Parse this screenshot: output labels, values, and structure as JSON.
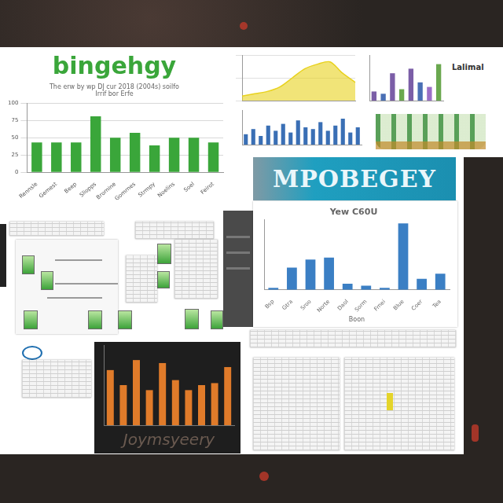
{
  "banner": "MPOBEGEY",
  "side_label": "Lalimal",
  "chart_data": [
    {
      "type": "bar",
      "title": "bingehgy",
      "subtitle": [
        "The erw by wp DJ cur 2018 (2004s) soilfo",
        "Irrif bor Erfe"
      ],
      "categories": [
        "Rennsle",
        "Gemest",
        "Beep",
        "Sliopps",
        "Brornine",
        "Gomrnes",
        "Strmpy",
        "Noelins",
        "Soel",
        "Feirot"
      ],
      "values": [
        43,
        43,
        43,
        81,
        50,
        57,
        39,
        50,
        50,
        43
      ],
      "color": "#3aa63a",
      "ylim": [
        0,
        100
      ],
      "yticks": [
        0,
        25,
        50,
        75,
        100
      ],
      "grid": true
    },
    {
      "type": "line",
      "categories": [
        null,
        null,
        null,
        null,
        null,
        null,
        null,
        null,
        null,
        null
      ],
      "values": [
        10,
        15,
        20,
        30,
        50,
        70,
        80,
        85,
        60,
        40
      ],
      "color": "#e8d21e",
      "ylim": [
        0,
        100
      ],
      "yticks": [
        0,
        50,
        100
      ],
      "grid": true,
      "tick_labels": false
    },
    {
      "type": "bar",
      "categories": [
        null,
        null,
        null,
        null,
        null,
        null,
        null,
        null
      ],
      "values": [
        20,
        15,
        60,
        25,
        70,
        40,
        30,
        80
      ],
      "colors": [
        "#7b5ea7",
        "#4a6fb5",
        "#7b5ea7",
        "#6aa84f",
        "#7b5ea7",
        "#4a6fb5",
        "#9b6fc7",
        "#6aa84f"
      ],
      "ylim": [
        0,
        100
      ],
      "yticks": [
        0,
        50,
        100
      ],
      "grid": false,
      "tick_labels": false
    },
    {
      "type": "bar",
      "categories": [
        null,
        null,
        null,
        null,
        null,
        null,
        null,
        null,
        null,
        null,
        null,
        null,
        null,
        null,
        null,
        null
      ],
      "values": [
        30,
        45,
        25,
        55,
        40,
        60,
        35,
        70,
        50,
        45,
        65,
        40,
        55,
        75,
        35,
        50
      ],
      "color": "#3a6fb5",
      "ylim": [
        0,
        100
      ],
      "yticks": [
        0,
        50,
        100
      ],
      "grid": false,
      "tick_labels": false
    },
    {
      "type": "bar",
      "title": "Yew C60U",
      "x_label": "Boon",
      "categories": [
        "Bsp",
        "Gtra",
        "Sroo",
        "Norte",
        "Daol",
        "Sorm",
        "Frnei",
        "Blue",
        "Coer",
        "Tea"
      ],
      "values": [
        2,
        22,
        30,
        32,
        6,
        4,
        2,
        66,
        11,
        16
      ],
      "color": "#3b7fc4",
      "ylim": [
        0,
        70
      ],
      "yticks": [
        0,
        35,
        70
      ],
      "grid": false,
      "tick_labels": "x"
    },
    {
      "type": "bar",
      "x_label": "Joymsyeery",
      "categories": [
        null,
        null,
        null,
        null,
        null,
        null,
        null,
        null,
        null,
        null
      ],
      "values": [
        55,
        40,
        65,
        35,
        62,
        45,
        35,
        40,
        42,
        58
      ],
      "color": "#e07b2a",
      "ylim": [
        0,
        80
      ],
      "yticks": [
        0,
        20,
        40,
        60,
        80
      ],
      "grid": false,
      "tick_labels": false
    }
  ]
}
